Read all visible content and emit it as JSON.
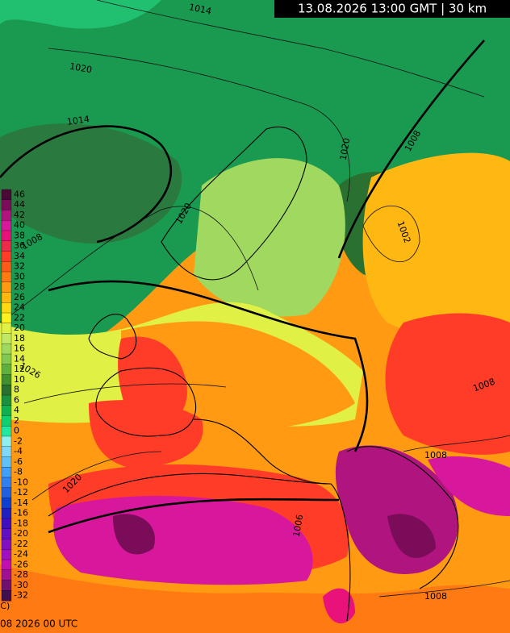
{
  "header": {
    "title": "13.08.2026 13:00 GMT | 30 km"
  },
  "legend": {
    "items": [
      {
        "value": 46,
        "color": "#4a0a35"
      },
      {
        "value": 44,
        "color": "#7a0c5a"
      },
      {
        "value": 42,
        "color": "#b0147e"
      },
      {
        "value": 40,
        "color": "#d8189c"
      },
      {
        "value": 38,
        "color": "#e8127a"
      },
      {
        "value": 36,
        "color": "#ec2a4a"
      },
      {
        "value": 34,
        "color": "#ff3c28"
      },
      {
        "value": 32,
        "color": "#ff5a1a"
      },
      {
        "value": 30,
        "color": "#ff7a12"
      },
      {
        "value": 28,
        "color": "#ff9a12"
      },
      {
        "value": 26,
        "color": "#ffb812"
      },
      {
        "value": 24,
        "color": "#ffd814"
      },
      {
        "value": 22,
        "color": "#fff022"
      },
      {
        "value": 20,
        "color": "#e0f044"
      },
      {
        "value": 18,
        "color": "#c0e864"
      },
      {
        "value": 16,
        "color": "#a0d860"
      },
      {
        "value": 14,
        "color": "#80c850"
      },
      {
        "value": 12,
        "color": "#60b040"
      },
      {
        "value": 10,
        "color": "#409030"
      },
      {
        "value": 8,
        "color": "#2a7030"
      },
      {
        "value": 6,
        "color": "#1a9040"
      },
      {
        "value": 4,
        "color": "#10b050"
      },
      {
        "value": 2,
        "color": "#10d070"
      },
      {
        "value": 0,
        "color": "#20e8a0"
      },
      {
        "value": -2,
        "color": "#90f0f0"
      },
      {
        "value": -4,
        "color": "#80d8f8"
      },
      {
        "value": -6,
        "color": "#60c0f8"
      },
      {
        "value": -8,
        "color": "#40a0f8"
      },
      {
        "value": -10,
        "color": "#3080f0"
      },
      {
        "value": -12,
        "color": "#2060e0"
      },
      {
        "value": -14,
        "color": "#1040d0"
      },
      {
        "value": -16,
        "color": "#2020c0"
      },
      {
        "value": -18,
        "color": "#4010c0"
      },
      {
        "value": -20,
        "color": "#6010c0"
      },
      {
        "value": -22,
        "color": "#8010c0"
      },
      {
        "value": -24,
        "color": "#a010c0"
      },
      {
        "value": -26,
        "color": "#c010b0"
      },
      {
        "value": -28,
        "color": "#a01090"
      },
      {
        "value": -30,
        "color": "#701070"
      },
      {
        "value": -32,
        "color": "#401050"
      }
    ]
  },
  "isobar_labels": [
    "1014",
    "1020",
    "1014",
    "1008",
    "1020",
    "1008",
    "1002",
    "1008",
    "1026",
    "1020",
    "1006",
    "1008",
    "1008",
    "1020"
  ],
  "footer": {
    "copyright": "(C)",
    "run": "08 2026 00 UTC"
  }
}
